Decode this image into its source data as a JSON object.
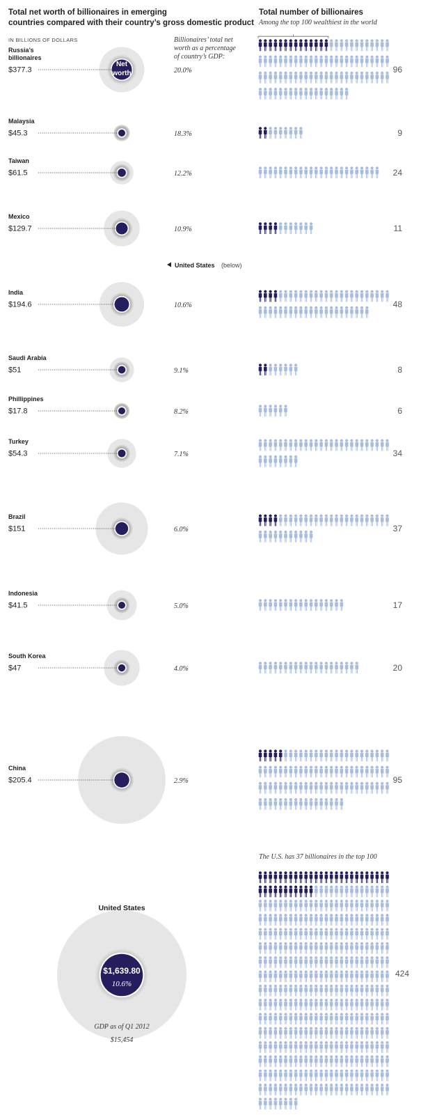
{
  "chart_data": {
    "type": "bubble-pictogram",
    "title": "Total net worth of billionaires in emerging countries compared with their country’s gross domestic product",
    "unit_label": "IN BILLIONS OF DOLLARS",
    "pct_header": "Billionaires’ total net worth as a percentage of country’s GDP:",
    "count_title": "Total number of billionaires",
    "count_subtitle": "Among the top 100 wealthiest in the world",
    "net_worth_label": "Net worth",
    "us_pointer": "United States",
    "us_pointer_note": "(below)",
    "countries": [
      {
        "name": "Russia’s billionaires",
        "name_lines": [
          "Russia’s",
          "billionaires"
        ],
        "net_worth": "$377.3",
        "net_worth_value": 377.3,
        "pct": "20.0%",
        "pct_value": 20.0,
        "count": 96,
        "top100": 14
      },
      {
        "name": "Malaysia",
        "name_lines": [
          "Malaysia"
        ],
        "net_worth": "$45.3",
        "net_worth_value": 45.3,
        "pct": "18.3%",
        "pct_value": 18.3,
        "count": 9,
        "top100": 2
      },
      {
        "name": "Taiwan",
        "name_lines": [
          "Taiwan"
        ],
        "net_worth": "$61.5",
        "net_worth_value": 61.5,
        "pct": "12.2%",
        "pct_value": 12.2,
        "count": 24,
        "top100": 0
      },
      {
        "name": "Mexico",
        "name_lines": [
          "Mexico"
        ],
        "net_worth": "$129.7",
        "net_worth_value": 129.7,
        "pct": "10.9%",
        "pct_value": 10.9,
        "count": 11,
        "top100": 4
      },
      {
        "name": "India",
        "name_lines": [
          "India"
        ],
        "net_worth": "$194.6",
        "net_worth_value": 194.6,
        "pct": "10.6%",
        "pct_value": 10.6,
        "count": 48,
        "top100": 4
      },
      {
        "name": "Saudi Arabia",
        "name_lines": [
          "Saudi Arabia"
        ],
        "net_worth": "$51",
        "net_worth_value": 51,
        "pct": "9.1%",
        "pct_value": 9.1,
        "count": 8,
        "top100": 2
      },
      {
        "name": "Phillippines",
        "name_lines": [
          "Phillippines"
        ],
        "net_worth": "$17.8",
        "net_worth_value": 17.8,
        "pct": "8.2%",
        "pct_value": 8.2,
        "count": 6,
        "top100": 0
      },
      {
        "name": "Turkey",
        "name_lines": [
          "Turkey"
        ],
        "net_worth": "$54.3",
        "net_worth_value": 54.3,
        "pct": "7.1%",
        "pct_value": 7.1,
        "count": 34,
        "top100": 0
      },
      {
        "name": "Brazil",
        "name_lines": [
          "Brazil"
        ],
        "net_worth": "$151",
        "net_worth_value": 151,
        "pct": "6.0%",
        "pct_value": 6.0,
        "count": 37,
        "top100": 4
      },
      {
        "name": "Indonesia",
        "name_lines": [
          "Indonesia"
        ],
        "net_worth": "$41.5",
        "net_worth_value": 41.5,
        "pct": "5.0%",
        "pct_value": 5.0,
        "count": 17,
        "top100": 0
      },
      {
        "name": "South Korea",
        "name_lines": [
          "South Korea"
        ],
        "net_worth": "$47",
        "net_worth_value": 47,
        "pct": "4.0%",
        "pct_value": 4.0,
        "count": 20,
        "top100": 0
      },
      {
        "name": "China",
        "name_lines": [
          "China"
        ],
        "net_worth": "$205.4",
        "net_worth_value": 205.4,
        "pct": "2.9%",
        "pct_value": 2.9,
        "count": 95,
        "top100": 5
      }
    ],
    "us": {
      "name": "United States",
      "net_worth": "$1,639.80",
      "net_worth_value": 1639.8,
      "pct": "10.6%",
      "pct_value": 10.6,
      "gdp_label": "GDP as of Q1 2012",
      "gdp": "$15,454",
      "gdp_value": 15454,
      "count": 424,
      "top100": 37,
      "note": "The U.S. has 37 billionaires in the top 100"
    },
    "colors": {
      "gdp_circle": "#e6e6e6",
      "net_worth_circle": "#241e5e",
      "top100_person": "#241e5e",
      "other_person": "#a7bcdf",
      "count_text": "#555555",
      "leader_line": "#333333"
    }
  }
}
